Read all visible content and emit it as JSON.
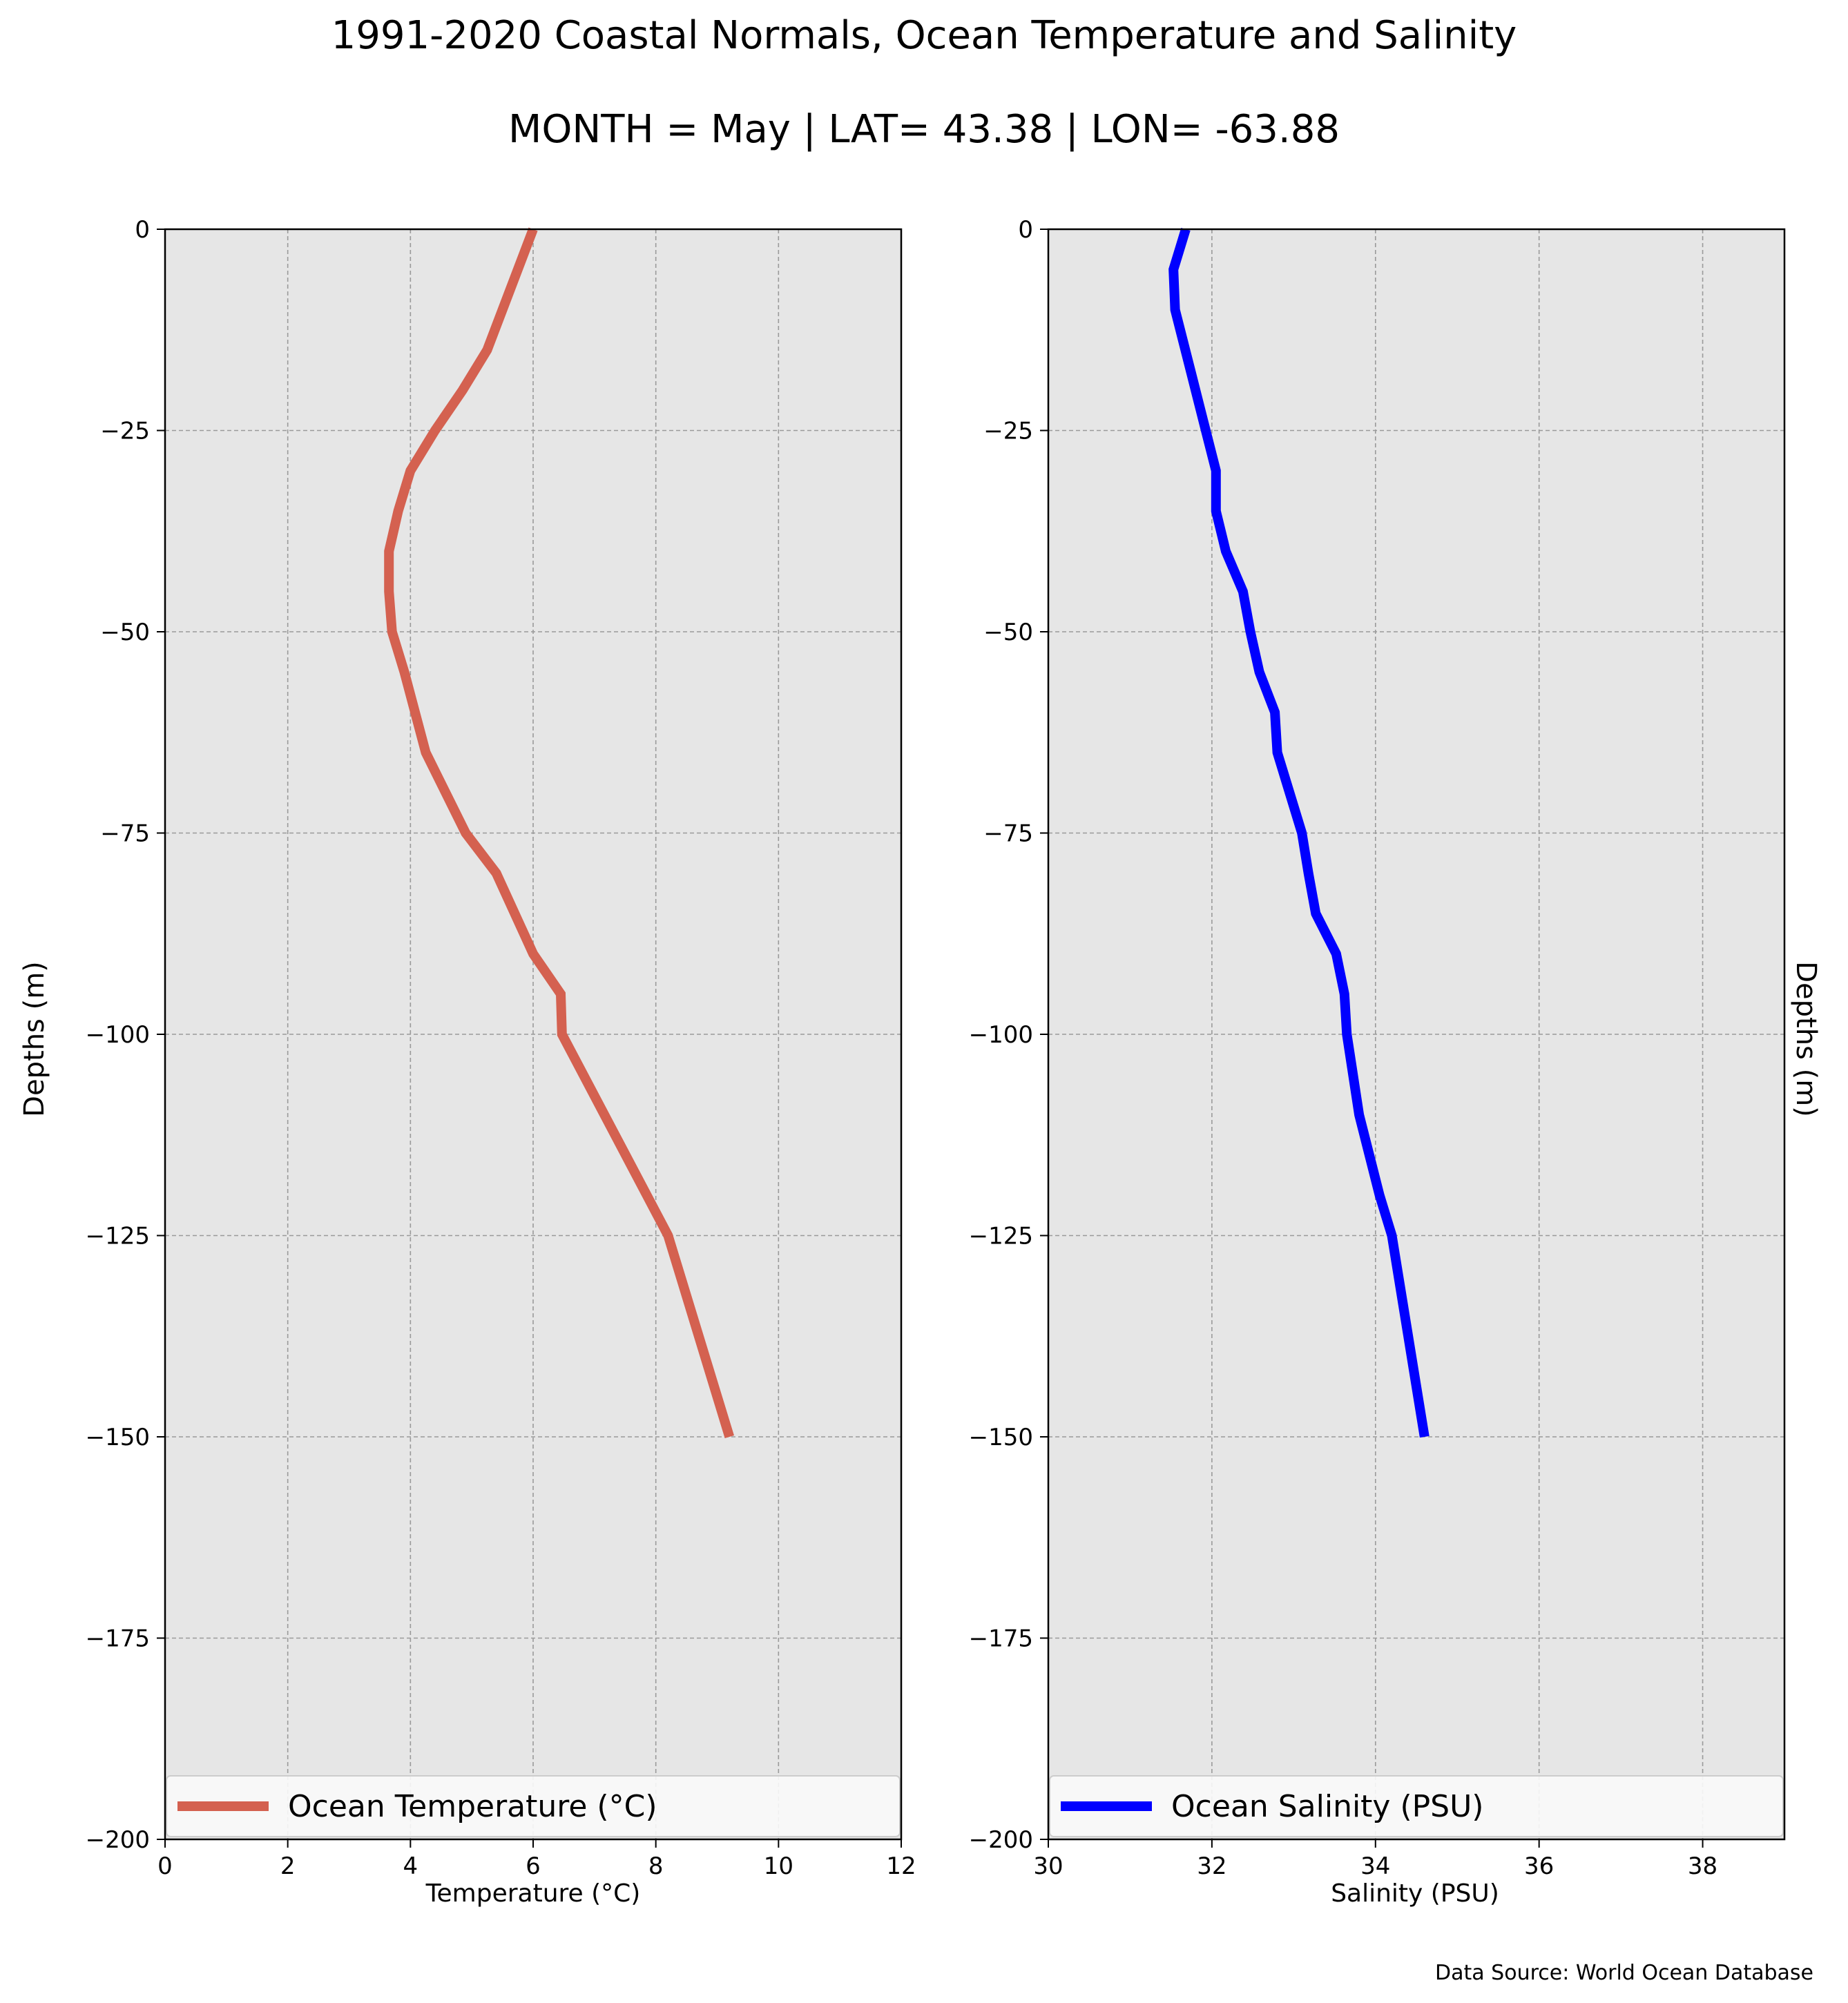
{
  "title": "1991-2020 Coastal Normals, Ocean Temperature and Salinity",
  "subtitle": "MONTH = May | LAT= 43.38 | LON= -63.88",
  "source": "Data Source: World Ocean Database",
  "chart_data": [
    {
      "type": "line",
      "xlabel": "Temperature (°C)",
      "ylabel": "Depths (m)",
      "xlim": [
        0,
        12
      ],
      "ylim": [
        -200,
        0
      ],
      "xticks": [
        0,
        2,
        4,
        6,
        8,
        10,
        12
      ],
      "yticks": [
        0,
        -25,
        -50,
        -75,
        -100,
        -125,
        -150,
        -175,
        -200
      ],
      "grid": true,
      "legend_position": "bottom",
      "colors": {
        "background": "#e6e6e6",
        "grid": "#9a9a9a"
      },
      "series": [
        {
          "name": "Ocean Temperature (°C)",
          "color": "#d46150",
          "x": [
            6.0,
            5.6,
            5.25,
            4.85,
            4.4,
            4.0,
            3.8,
            3.65,
            3.65,
            3.7,
            3.9,
            4.25,
            4.9,
            5.4,
            6.0,
            6.45,
            6.47,
            8.2,
            9.2
          ],
          "y": [
            0,
            -8,
            -15,
            -20,
            -25,
            -30,
            -35,
            -40,
            -45,
            -50,
            -55,
            -65,
            -75,
            -80,
            -90,
            -95,
            -100,
            -125,
            -150
          ]
        }
      ]
    },
    {
      "type": "line",
      "xlabel": "Salinity (PSU)",
      "ylabel": "Depths (m)",
      "xlim": [
        30,
        39
      ],
      "ylim": [
        -200,
        0
      ],
      "xticks": [
        30,
        32,
        34,
        36,
        38
      ],
      "yticks": [
        0,
        -25,
        -50,
        -75,
        -100,
        -125,
        -150,
        -175,
        -200
      ],
      "grid": true,
      "legend_position": "bottom",
      "colors": {
        "background": "#e6e6e6",
        "grid": "#9a9a9a"
      },
      "series": [
        {
          "name": "Ocean Salinity (PSU)",
          "color": "#0000ff",
          "x": [
            31.68,
            31.53,
            31.55,
            31.75,
            31.9,
            32.05,
            32.05,
            32.17,
            32.38,
            32.47,
            32.58,
            32.77,
            32.8,
            33.1,
            33.18,
            33.27,
            33.52,
            33.62,
            33.65,
            33.8,
            34.05,
            34.2,
            34.6
          ],
          "y": [
            0,
            -5,
            -10,
            -18,
            -24,
            -30,
            -35,
            -40,
            -45,
            -50,
            -55,
            -60,
            -65,
            -75,
            -80,
            -85,
            -90,
            -95,
            -100,
            -110,
            -120,
            -125,
            -150
          ]
        }
      ]
    }
  ]
}
